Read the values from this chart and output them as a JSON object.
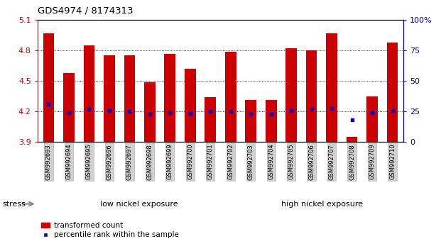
{
  "title": "GDS4974 / 8174313",
  "samples": [
    "GSM992693",
    "GSM992694",
    "GSM992695",
    "GSM992696",
    "GSM992697",
    "GSM992698",
    "GSM992699",
    "GSM992700",
    "GSM992701",
    "GSM992702",
    "GSM992703",
    "GSM992704",
    "GSM992705",
    "GSM992706",
    "GSM992707",
    "GSM992708",
    "GSM992709",
    "GSM992710"
  ],
  "bar_tops": [
    4.97,
    4.58,
    4.85,
    4.75,
    4.75,
    4.49,
    4.77,
    4.62,
    4.34,
    4.79,
    4.31,
    4.31,
    4.82,
    4.8,
    4.97,
    3.95,
    4.35,
    4.88
  ],
  "blue_dots": [
    4.27,
    4.19,
    4.22,
    4.21,
    4.2,
    4.17,
    4.19,
    4.18,
    4.2,
    4.2,
    4.17,
    4.17,
    4.21,
    4.22,
    4.23,
    4.12,
    4.19,
    4.21
  ],
  "ymin": 3.9,
  "ymax": 5.1,
  "yticks_left": [
    3.9,
    4.2,
    4.5,
    4.8,
    5.1
  ],
  "right_ytick_pcts": [
    0,
    25,
    50,
    75,
    100
  ],
  "bar_color": "#cc0000",
  "dot_color": "#0000cc",
  "bar_width": 0.55,
  "low_nickel_count": 10,
  "high_nickel_count": 8,
  "label_low": "low nickel exposure",
  "label_high": "high nickel exposure",
  "label_stress": "stress",
  "legend_bar": "transformed count",
  "legend_dot": "percentile rank within the sample",
  "bg_label_low": "#aaddaa",
  "bg_label_high": "#44cc44",
  "axis_color_left": "#cc0000",
  "axis_color_right": "#0000cc",
  "grid_lines": [
    4.2,
    4.5,
    4.8
  ]
}
